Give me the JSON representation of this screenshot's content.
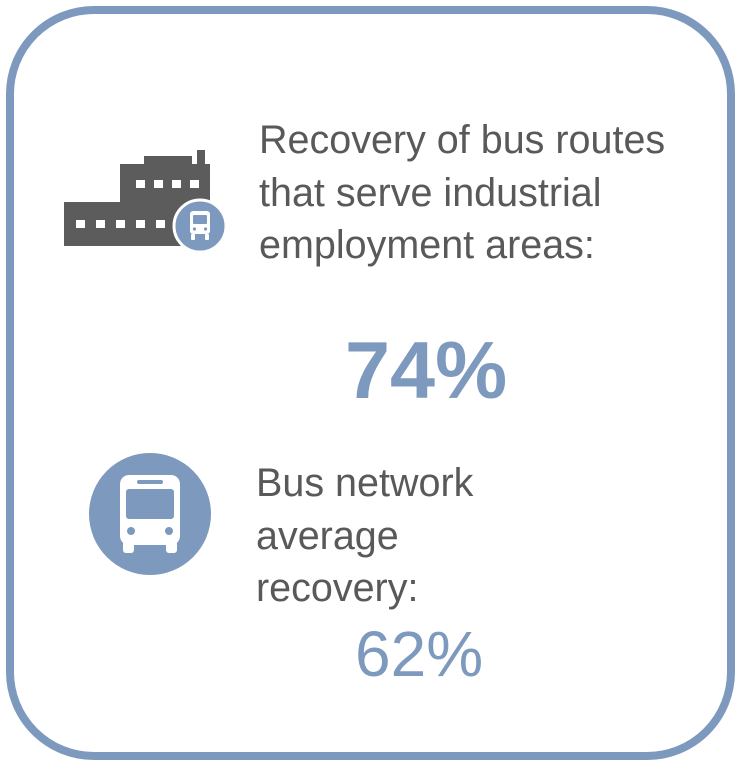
{
  "colors": {
    "accent": "#7d99bd",
    "icon_dark": "#5c5c5c",
    "text": "#595959"
  },
  "stat_industrial": {
    "icon": "factory-with-bus-icon",
    "label": "Recovery of bus routes that serve industrial employment areas:",
    "value": "74%"
  },
  "stat_network": {
    "icon": "bus-icon",
    "label": "Bus network average recovery:",
    "value": "62%"
  }
}
